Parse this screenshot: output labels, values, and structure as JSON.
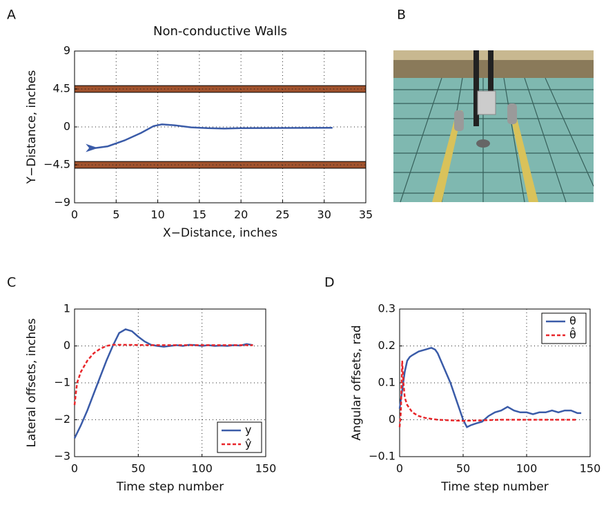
{
  "chart_data": [
    {
      "type": "line",
      "label": "A",
      "title": "Non-conductive Walls",
      "xlabel": "X−Distance, inches",
      "ylabel": "Y−Distance, inches",
      "xlim": [
        0,
        35
      ],
      "xticks": [
        0,
        5,
        10,
        15,
        20,
        25,
        30,
        35
      ],
      "ylim": [
        -9,
        9
      ],
      "yticks": [
        {
          "value": -9,
          "label": "−9"
        },
        {
          "value": -4.5,
          "label": "−4.5"
        },
        0,
        4.5,
        9
      ],
      "grid": true,
      "walls": [
        {
          "ymin": 4.1,
          "ymax": 4.9,
          "color": "#a0522d"
        },
        {
          "ymin": -4.9,
          "ymax": -4.1,
          "color": "#a0522d"
        }
      ],
      "series": [
        {
          "color": "#3a5ba8",
          "style": "solid",
          "start_marker": true,
          "x": [
            2.5,
            4,
            6,
            8,
            9.5,
            10.5,
            12,
            14,
            16,
            18,
            20,
            25,
            31
          ],
          "values": [
            -2.5,
            -2.3,
            -1.6,
            -0.7,
            0.1,
            0.3,
            0.2,
            -0.05,
            -0.15,
            -0.2,
            -0.15,
            -0.12,
            -0.1
          ]
        }
      ]
    },
    {
      "type": "line",
      "label": "C",
      "xlabel": "Time step number",
      "ylabel": "Lateral offsets, inches",
      "xlim": [
        0,
        150
      ],
      "xticks": [
        0,
        50,
        100,
        150
      ],
      "ylim": [
        -3,
        1
      ],
      "yticks": [
        {
          "value": -3,
          "label": "−3"
        },
        {
          "value": -2,
          "label": "−2"
        },
        {
          "value": -1,
          "label": "−1"
        },
        0,
        1
      ],
      "grid": true,
      "legend": "lower right",
      "series": [
        {
          "name": "y",
          "color": "#3a5ba8",
          "style": "solid",
          "x": [
            0,
            5,
            10,
            15,
            20,
            25,
            30,
            35,
            40,
            45,
            50,
            55,
            60,
            65,
            70,
            75,
            80,
            85,
            90,
            95,
            100,
            105,
            110,
            115,
            120,
            125,
            130,
            135,
            140
          ],
          "values": [
            -2.5,
            -2.15,
            -1.75,
            -1.3,
            -0.85,
            -0.4,
            0.0,
            0.35,
            0.45,
            0.4,
            0.25,
            0.12,
            0.03,
            0.0,
            -0.02,
            0.0,
            0.02,
            0.0,
            0.03,
            0.02,
            0.0,
            0.02,
            0.0,
            0.01,
            0.0,
            0.02,
            0.01,
            0.05,
            0.02
          ]
        },
        {
          "name": "ŷ",
          "color": "#e8262a",
          "style": "dashed",
          "x": [
            0,
            2,
            5,
            10,
            15,
            20,
            25,
            30,
            40,
            60,
            80,
            100,
            120,
            140
          ],
          "values": [
            -1.6,
            -1.0,
            -0.7,
            -0.4,
            -0.2,
            -0.08,
            0.0,
            0.03,
            0.03,
            0.02,
            0.02,
            0.02,
            0.02,
            0.02
          ]
        }
      ]
    },
    {
      "type": "line",
      "label": "D",
      "xlabel": "Time step number",
      "ylabel": "Angular offsets, rad",
      "xlim": [
        0,
        150
      ],
      "xticks": [
        0,
        50,
        100,
        150
      ],
      "ylim": [
        -0.1,
        0.3
      ],
      "yticks": [
        {
          "value": -0.1,
          "label": "−0.1"
        },
        0,
        0.1,
        0.2,
        0.3
      ],
      "grid": true,
      "legend": "upper right",
      "series": [
        {
          "name": "θ",
          "color": "#3a5ba8",
          "style": "solid",
          "x": [
            0,
            2,
            4,
            6,
            8,
            10,
            15,
            20,
            25,
            28,
            30,
            35,
            40,
            45,
            50,
            53,
            56,
            60,
            65,
            70,
            75,
            80,
            85,
            90,
            95,
            100,
            105,
            110,
            115,
            120,
            125,
            130,
            135,
            140,
            143
          ],
          "values": [
            0.03,
            0.08,
            0.13,
            0.16,
            0.17,
            0.175,
            0.185,
            0.19,
            0.195,
            0.19,
            0.18,
            0.14,
            0.1,
            0.05,
            0.0,
            -0.02,
            -0.015,
            -0.01,
            -0.005,
            0.01,
            0.02,
            0.025,
            0.035,
            0.025,
            0.02,
            0.02,
            0.015,
            0.02,
            0.02,
            0.025,
            0.02,
            0.025,
            0.025,
            0.018,
            0.018
          ]
        },
        {
          "name": "θ̂",
          "color": "#e8262a",
          "style": "dashed",
          "x": [
            0,
            1,
            2,
            3,
            4,
            6,
            10,
            15,
            20,
            30,
            50,
            80,
            140
          ],
          "values": [
            -0.02,
            0.02,
            0.16,
            0.1,
            0.06,
            0.04,
            0.02,
            0.01,
            0.005,
            0.0,
            -0.003,
            0.0,
            0.0
          ]
        }
      ]
    }
  ],
  "photo": {
    "label": "B"
  }
}
